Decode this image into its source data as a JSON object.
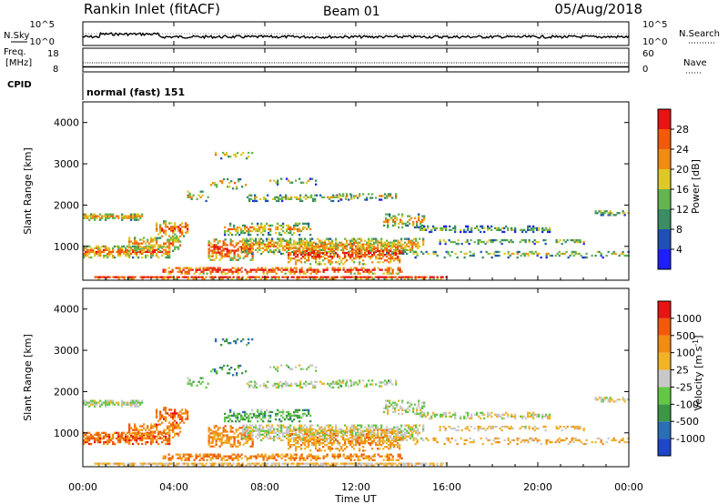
{
  "header": {
    "station": "Rankin Inlet (fitACF)",
    "beam": "Beam 01",
    "date": "05/Aug/2018"
  },
  "noise_panel": {
    "left_label": "N.Sky",
    "right_label": "N.Search",
    "y_top_tick": "10^5",
    "y_bottom_tick": "10^0",
    "right_top_tick": "10^5",
    "right_bottom_tick": "10^0"
  },
  "freq_panel": {
    "left_label_1": "Freq.",
    "left_label_2": "[MHz]",
    "right_label": "Nave",
    "y_top_tick": "18",
    "y_bottom_tick": "8",
    "right_top_tick": "60",
    "right_bottom_tick": "0"
  },
  "cpid_panel": {
    "label": "CPID",
    "mode": "normal (fast) 151"
  },
  "colors": {
    "power": [
      "#1e1eff",
      "#2050b4",
      "#3c8c64",
      "#64b450",
      "#dcc828",
      "#f08c14",
      "#f05a0a",
      "#e61414"
    ],
    "velocity": [
      "#e61414",
      "#f05a0a",
      "#f08c14",
      "#f0b428",
      "#c8c8c8",
      "#64c846",
      "#3c9646",
      "#2a6eb4",
      "#1e46c8"
    ]
  },
  "chart_data": [
    {
      "type": "heatmap",
      "name": "power",
      "ylabel": "Slant Range [km]",
      "yticks": [
        1000,
        2000,
        3000,
        4000
      ],
      "ylim": [
        180,
        4500
      ],
      "xlim": [
        0,
        24
      ],
      "colorbar_label": "Power [dB]",
      "colorbar_ticks": [
        4,
        8,
        12,
        16,
        20,
        24,
        28
      ],
      "colorbar_range": [
        0,
        30
      ]
    },
    {
      "type": "heatmap",
      "name": "velocity",
      "ylabel": "Slant Range [km]",
      "yticks": [
        1000,
        2000,
        3000,
        4000
      ],
      "ylim": [
        180,
        4500
      ],
      "xlim": [
        0,
        24
      ],
      "xticks": [
        "00:00",
        "04:00",
        "08:00",
        "12:00",
        "16:00",
        "20:00",
        "00:00"
      ],
      "xlabel": "Time UT",
      "colorbar_label": "Velocity [m s-1]",
      "colorbar_ticks": [
        "1000",
        "500",
        "100",
        "25",
        "-25",
        "-100",
        "-500",
        "-1000"
      ]
    }
  ]
}
